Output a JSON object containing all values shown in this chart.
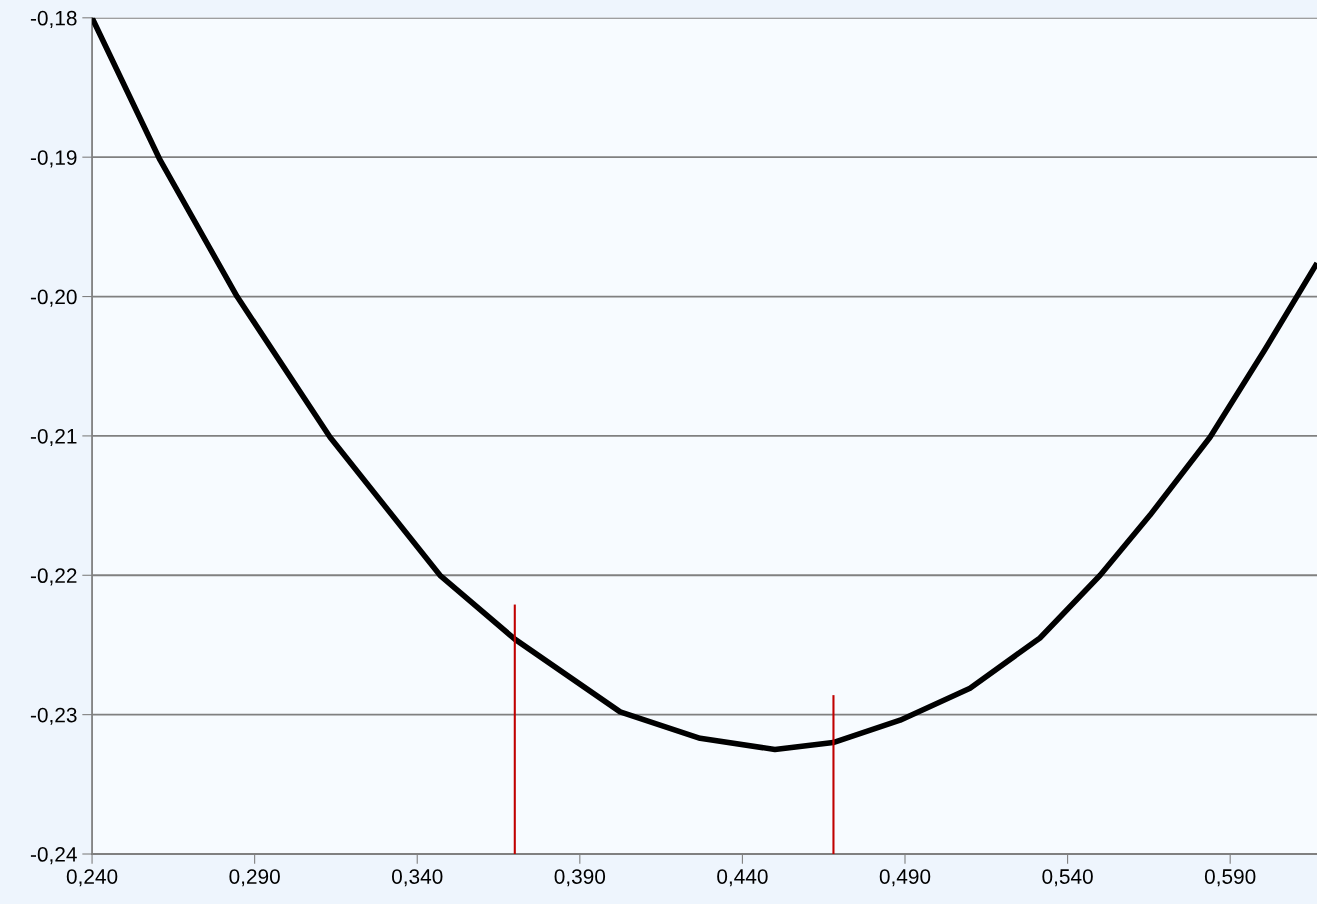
{
  "chart_data": {
    "type": "line",
    "xlim": [
      0.24,
      0.6167
    ],
    "ylim": [
      -0.24,
      -0.18
    ],
    "xticks": [
      {
        "value": 0.24,
        "label": "0,240"
      },
      {
        "value": 0.29,
        "label": "0,290"
      },
      {
        "value": 0.34,
        "label": "0,340"
      },
      {
        "value": 0.39,
        "label": "0,390"
      },
      {
        "value": 0.44,
        "label": "0,440"
      },
      {
        "value": 0.49,
        "label": "0,490"
      },
      {
        "value": 0.54,
        "label": "0,540"
      },
      {
        "value": 0.59,
        "label": "0,590"
      }
    ],
    "yticks": [
      {
        "value": -0.24,
        "label": "-0,24"
      },
      {
        "value": -0.23,
        "label": "-0,23"
      },
      {
        "value": -0.22,
        "label": "-0,22"
      },
      {
        "value": -0.21,
        "label": "-0,21"
      },
      {
        "value": -0.2,
        "label": "-0,20"
      },
      {
        "value": -0.19,
        "label": "-0,19"
      },
      {
        "value": -0.18,
        "label": "-0,18"
      }
    ],
    "grid": "y",
    "line_style": "solid",
    "series": [
      {
        "color": "#000000",
        "x": [
          0.24,
          0.2609,
          0.2846,
          0.3132,
          0.347,
          0.3701,
          0.4024,
          0.427,
          0.45,
          0.4679,
          0.4885,
          0.51,
          0.5315,
          0.55,
          0.5653,
          0.5838,
          0.6007,
          0.6167
        ],
        "values": [
          -0.18,
          -0.1902,
          -0.2,
          -0.2101,
          -0.22,
          -0.2246,
          -0.2298,
          -0.2317,
          -0.2325,
          -0.232,
          -0.2304,
          -0.2281,
          -0.2245,
          -0.22,
          -0.2157,
          -0.2101,
          -0.2038,
          -0.1976
        ]
      },
      {
        "color": "#c00000",
        "x": [
          0.37,
          0.37
        ],
        "values": [
          -0.24,
          -0.2221
        ]
      },
      {
        "color": "#c00000",
        "x": [
          0.468,
          0.468
        ],
        "values": [
          -0.24,
          -0.2286
        ]
      }
    ]
  }
}
